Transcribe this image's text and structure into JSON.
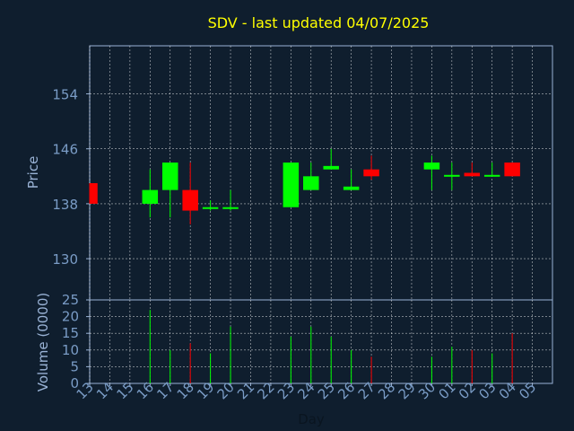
{
  "chart_data": {
    "type": "candlestick",
    "title": "SDV - last updated 04/07/2025",
    "price_axis": {
      "label": "Price",
      "ticks": [
        130,
        138,
        146,
        154
      ],
      "range": [
        124,
        161
      ]
    },
    "volume_axis": {
      "label": "Volume (0000)",
      "ticks": [
        0,
        5,
        10,
        15,
        20,
        25
      ],
      "range": [
        0,
        25
      ]
    },
    "x_axis": {
      "label": "Day",
      "ticks": [
        "13",
        "14",
        "15",
        "16",
        "17",
        "18",
        "19",
        "20",
        "21",
        "22",
        "23",
        "24",
        "25",
        "26",
        "27",
        "28",
        "29",
        "30",
        "01",
        "02",
        "03",
        "04",
        "05"
      ]
    },
    "grid": true,
    "colors": {
      "background": "#0f1e2e",
      "up": "#00ff00",
      "down": "#ff0000",
      "title": "#ffff00",
      "axis_text": "#7a9cc6",
      "axis_label": "#9ab3d6",
      "grid": "#ffffff"
    },
    "candles": [
      {
        "day": "13",
        "open": 141.0,
        "high": 141.0,
        "low": 138.0,
        "close": 138.0,
        "volume": 0
      },
      {
        "day": "16",
        "open": 138.0,
        "high": 143.0,
        "low": 136.0,
        "close": 140.0,
        "volume": 22
      },
      {
        "day": "17",
        "open": 140.0,
        "high": 144.0,
        "low": 136.0,
        "close": 144.0,
        "volume": 10
      },
      {
        "day": "18",
        "open": 140.0,
        "high": 144.0,
        "low": 135.0,
        "close": 137.0,
        "volume": 12
      },
      {
        "day": "19",
        "open": 137.5,
        "high": 138.5,
        "low": 137.0,
        "close": 137.5,
        "volume": 9
      },
      {
        "day": "20",
        "open": 137.5,
        "high": 140.0,
        "low": 137.0,
        "close": 137.5,
        "volume": 17
      },
      {
        "day": "23",
        "open": 137.5,
        "high": 144.0,
        "low": 137.5,
        "close": 144.0,
        "volume": 14
      },
      {
        "day": "24",
        "open": 140.0,
        "high": 144.0,
        "low": 140.0,
        "close": 142.0,
        "volume": 17
      },
      {
        "day": "25",
        "open": 143.0,
        "high": 146.0,
        "low": 143.0,
        "close": 143.5,
        "volume": 14
      },
      {
        "day": "26",
        "open": 140.0,
        "high": 143.0,
        "low": 140.0,
        "close": 140.5,
        "volume": 10
      },
      {
        "day": "27",
        "open": 143.0,
        "high": 145.0,
        "low": 141.5,
        "close": 142.0,
        "volume": 8
      },
      {
        "day": "30",
        "open": 143.0,
        "high": 145.0,
        "low": 140.0,
        "close": 144.0,
        "volume": 8
      },
      {
        "day": "01",
        "open": 142.0,
        "high": 144.0,
        "low": 140.0,
        "close": 142.2,
        "volume": 11
      },
      {
        "day": "02",
        "open": 142.5,
        "high": 144.0,
        "low": 142.0,
        "close": 142.0,
        "volume": 10
      },
      {
        "day": "03",
        "open": 142.0,
        "high": 144.0,
        "low": 142.0,
        "close": 142.2,
        "volume": 9
      },
      {
        "day": "04",
        "open": 144.0,
        "high": 144.0,
        "low": 142.0,
        "close": 142.0,
        "volume": 15
      }
    ]
  }
}
